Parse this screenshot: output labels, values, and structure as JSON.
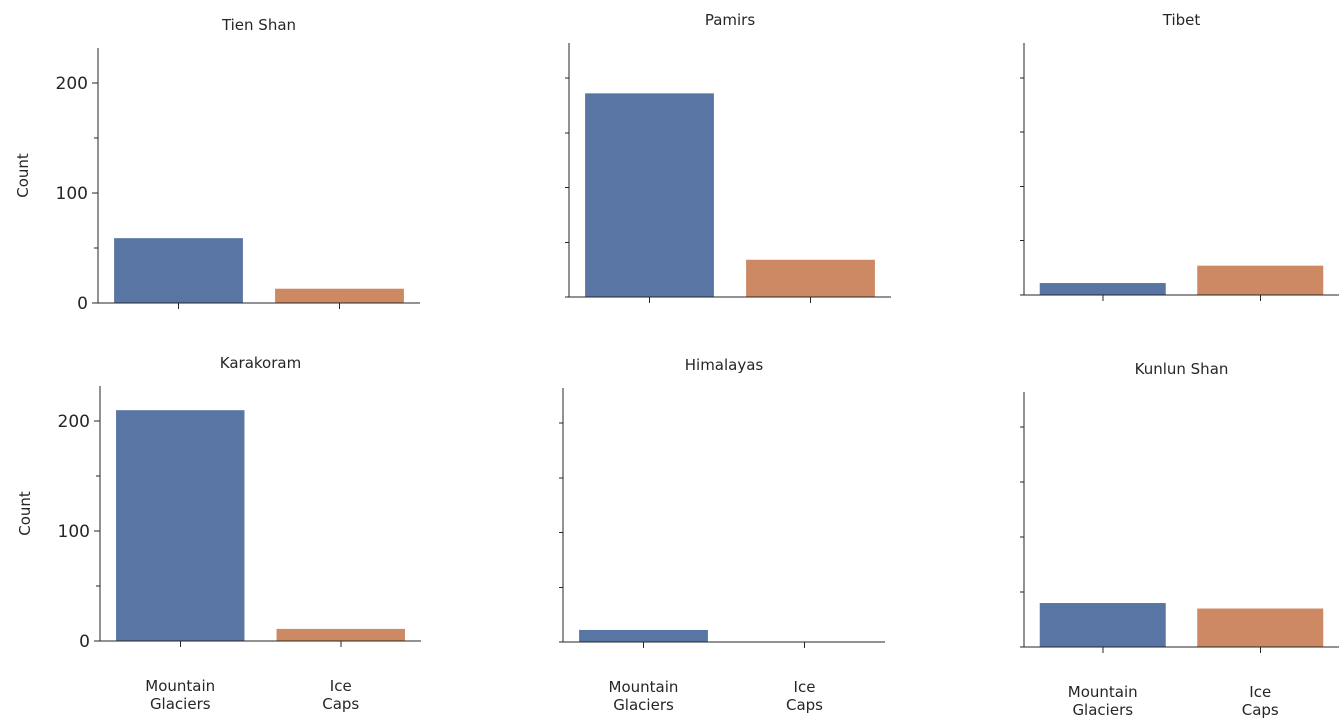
{
  "colors": {
    "mountain_glaciers": "#5875a4",
    "ice_caps": "#cc8963",
    "axis": "#262626"
  },
  "chart_data": [
    {
      "type": "bar",
      "title": "Tien Shan",
      "ylabel": "Count",
      "ylim": [
        0,
        232
      ],
      "yticks": [
        0,
        100,
        200
      ],
      "show_ytick_labels": true,
      "show_xtick_labels": false,
      "categories": [
        [
          "Mountain",
          "Glaciers"
        ],
        [
          "Ice",
          "Caps"
        ]
      ],
      "values": [
        59,
        13
      ],
      "legend": "none",
      "grid": false
    },
    {
      "type": "bar",
      "title": "Pamirs",
      "ylabel": "",
      "ylim": [
        0,
        232
      ],
      "yticks": [
        0,
        50,
        100,
        150,
        200
      ],
      "show_ytick_labels": false,
      "show_xtick_labels": false,
      "categories": [
        [
          "Mountain",
          "Glaciers"
        ],
        [
          "Ice",
          "Caps"
        ]
      ],
      "values": [
        186,
        34
      ],
      "legend": "none",
      "grid": false
    },
    {
      "type": "bar",
      "title": "Tibet",
      "ylabel": "",
      "ylim": [
        0,
        232
      ],
      "yticks": [
        0,
        50,
        100,
        150,
        200
      ],
      "show_ytick_labels": false,
      "show_xtick_labels": false,
      "categories": [
        [
          "Mountain",
          "Glaciers"
        ],
        [
          "Ice",
          "Caps"
        ]
      ],
      "values": [
        11,
        27
      ],
      "legend": "none",
      "grid": false
    },
    {
      "type": "bar",
      "title": "Karakoram",
      "ylabel": "Count",
      "ylim": [
        0,
        232
      ],
      "yticks": [
        0,
        100,
        200
      ],
      "show_ytick_labels": true,
      "show_xtick_labels": true,
      "categories": [
        [
          "Mountain",
          "Glaciers"
        ],
        [
          "Ice",
          "Caps"
        ]
      ],
      "values": [
        210,
        11
      ],
      "legend": "none",
      "grid": false
    },
    {
      "type": "bar",
      "title": "Himalayas",
      "ylabel": "",
      "ylim": [
        0,
        232
      ],
      "yticks": [
        0,
        50,
        100,
        150,
        200
      ],
      "show_ytick_labels": false,
      "show_xtick_labels": true,
      "categories": [
        [
          "Mountain",
          "Glaciers"
        ],
        [
          "Ice",
          "Caps"
        ]
      ],
      "values": [
        11,
        0
      ],
      "legend": "none",
      "grid": false
    },
    {
      "type": "bar",
      "title": "Kunlun Shan",
      "ylabel": "",
      "ylim": [
        0,
        232
      ],
      "yticks": [
        0,
        50,
        100,
        150,
        200
      ],
      "show_ytick_labels": false,
      "show_xtick_labels": true,
      "categories": [
        [
          "Mountain",
          "Glaciers"
        ],
        [
          "Ice",
          "Caps"
        ]
      ],
      "values": [
        40,
        35
      ],
      "legend": "none",
      "grid": false
    }
  ]
}
